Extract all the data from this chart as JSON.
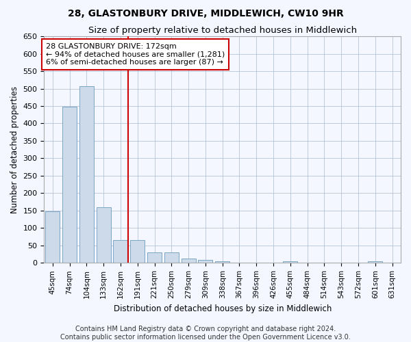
{
  "title": "28, GLASTONBURY DRIVE, MIDDLEWICH, CW10 9HR",
  "subtitle": "Size of property relative to detached houses in Middlewich",
  "xlabel": "Distribution of detached houses by size in Middlewich",
  "ylabel": "Number of detached properties",
  "bar_categories": [
    "45sqm",
    "74sqm",
    "104sqm",
    "133sqm",
    "162sqm",
    "191sqm",
    "221sqm",
    "250sqm",
    "279sqm",
    "309sqm",
    "338sqm",
    "367sqm",
    "396sqm",
    "426sqm",
    "455sqm",
    "484sqm",
    "514sqm",
    "543sqm",
    "572sqm",
    "601sqm",
    "631sqm"
  ],
  "bar_values": [
    148,
    448,
    507,
    160,
    65,
    65,
    30,
    30,
    13,
    8,
    5,
    0,
    0,
    0,
    5,
    0,
    0,
    0,
    0,
    5,
    0
  ],
  "bar_color": "#cddaea",
  "bar_edge_color": "#6a9bbf",
  "vline_x_idx": 4.45,
  "annotation_text": "28 GLASTONBURY DRIVE: 172sqm\n← 94% of detached houses are smaller (1,281)\n6% of semi-detached houses are larger (87) →",
  "annotation_box_color": "#ffffff",
  "annotation_box_edge_color": "#cc0000",
  "vline_color": "#cc0000",
  "ylim": [
    0,
    650
  ],
  "yticks": [
    0,
    50,
    100,
    150,
    200,
    250,
    300,
    350,
    400,
    450,
    500,
    550,
    600,
    650
  ],
  "footer_line1": "Contains HM Land Registry data © Crown copyright and database right 2024.",
  "footer_line2": "Contains public sector information licensed under the Open Government Licence v3.0.",
  "background_color": "#f4f7ff",
  "plot_bg_color": "#f4f7ff",
  "title_fontsize": 10,
  "subtitle_fontsize": 9.5,
  "xlabel_fontsize": 8.5,
  "ylabel_fontsize": 8.5,
  "tick_fontsize": 7.5,
  "ytick_fontsize": 8,
  "footer_fontsize": 7,
  "annotation_fontsize": 8
}
